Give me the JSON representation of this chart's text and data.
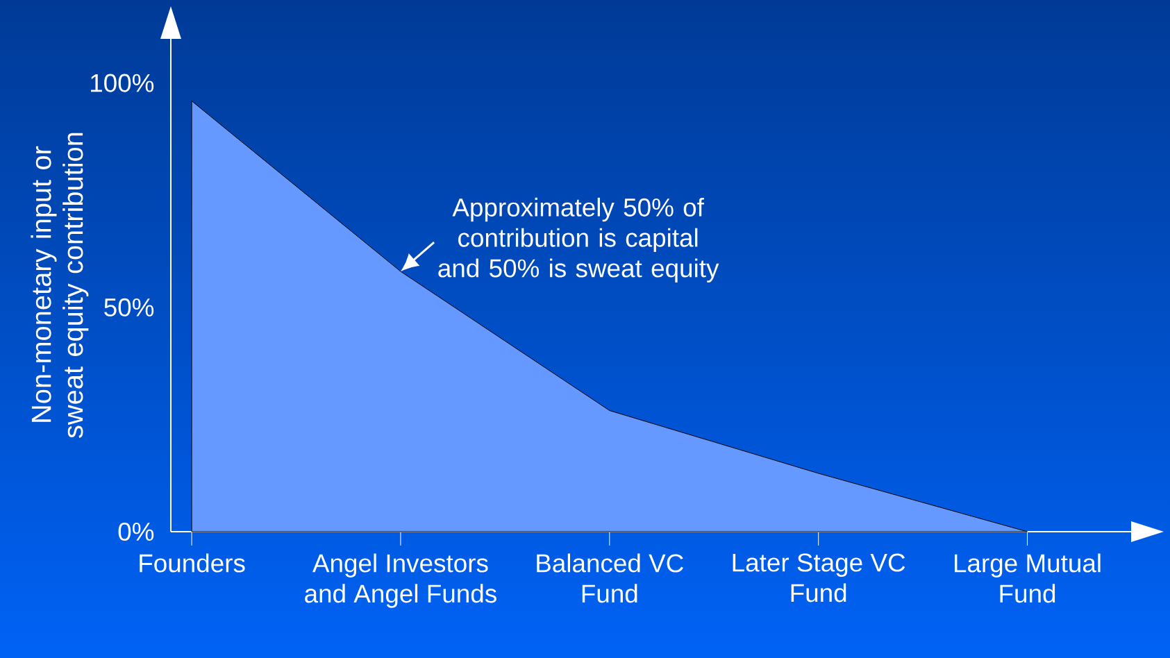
{
  "chart_data": {
    "type": "area",
    "ylabel": "Non-monetary input or sweat equity contribution",
    "categories": [
      "Founders",
      "Angel Investors and Angel Funds",
      "Balanced VC Fund",
      "Later Stage VC Fund",
      "Large Mutual Fund"
    ],
    "values": [
      96,
      58,
      27,
      13,
      0
    ],
    "color": "#6699ff",
    "ylim": [
      0,
      110
    ],
    "yticks": [
      {
        "value": 0,
        "label": "0%"
      },
      {
        "value": 50,
        "label": "50%"
      },
      {
        "value": 100,
        "label": "100%"
      }
    ],
    "annotations": [
      {
        "text": "Approximately 50% of contribution is capital and 50% is sweat equity",
        "x": "Angel Investors and Angel Funds",
        "y": 58
      }
    ],
    "grid": false,
    "marker": "none"
  }
}
